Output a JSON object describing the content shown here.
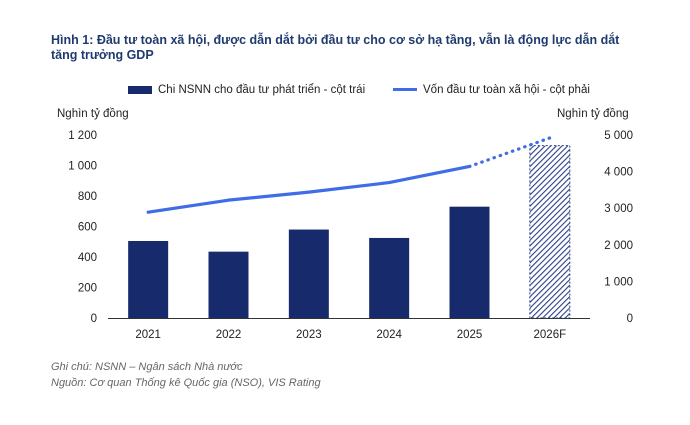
{
  "title": {
    "line1": "Hình 1: Đầu tư toàn xã hội, được dẫn dắt bởi đầu tư cho cơ sở hạ tầng, vẫn là động lực dẫn dắt",
    "line2": "tăng trưởng GDP"
  },
  "legend": {
    "bar": "Chi NSNN cho đầu tư phát triển - cột trái",
    "line": "Vốn đầu tư toàn xã hội - cột phải"
  },
  "left_unit": "Nghìn tỷ đồng",
  "right_unit": "Nghìn tỷ đồng",
  "notes": {
    "note": "Ghi chú: NSNN – Ngân sách Nhà nước",
    "source": "Nguồn: Cơ quan Thống kê Quốc gia (NSO), VIS Rating"
  },
  "colors": {
    "bar": "#172a6b",
    "line": "#3f6de6",
    "forecast_bar": "#2c3f85"
  },
  "chart_data": {
    "type": "bar",
    "categories": [
      "2021",
      "2022",
      "2023",
      "2024",
      "2025",
      "2026F"
    ],
    "series": [
      {
        "name": "Chi NSNN cho đầu tư phát triển - cột trái",
        "type": "bar",
        "axis": "left",
        "values": [
          505,
          435,
          580,
          525,
          730,
          1130
        ],
        "forecast_index": 5
      },
      {
        "name": "Vốn đầu tư toàn xã hội - cột phải",
        "type": "line",
        "axis": "right",
        "values": [
          2890,
          3220,
          3440,
          3700,
          4140,
          4920
        ],
        "forecast_from_index": 4
      }
    ],
    "y_left": {
      "ylim": [
        0,
        1200
      ],
      "ticks": [
        "0",
        "200",
        "400",
        "600",
        "800",
        "1 000",
        "1 200"
      ],
      "tick_values": [
        0,
        200,
        400,
        600,
        800,
        1000,
        1200
      ]
    },
    "y_right": {
      "ylim": [
        0,
        5000
      ],
      "ticks": [
        "0",
        "1 000",
        "2 000",
        "3 000",
        "4 000",
        "5 000"
      ],
      "tick_values": [
        0,
        1000,
        2000,
        3000,
        4000,
        5000
      ]
    },
    "grid": false,
    "legend_position": "top"
  }
}
